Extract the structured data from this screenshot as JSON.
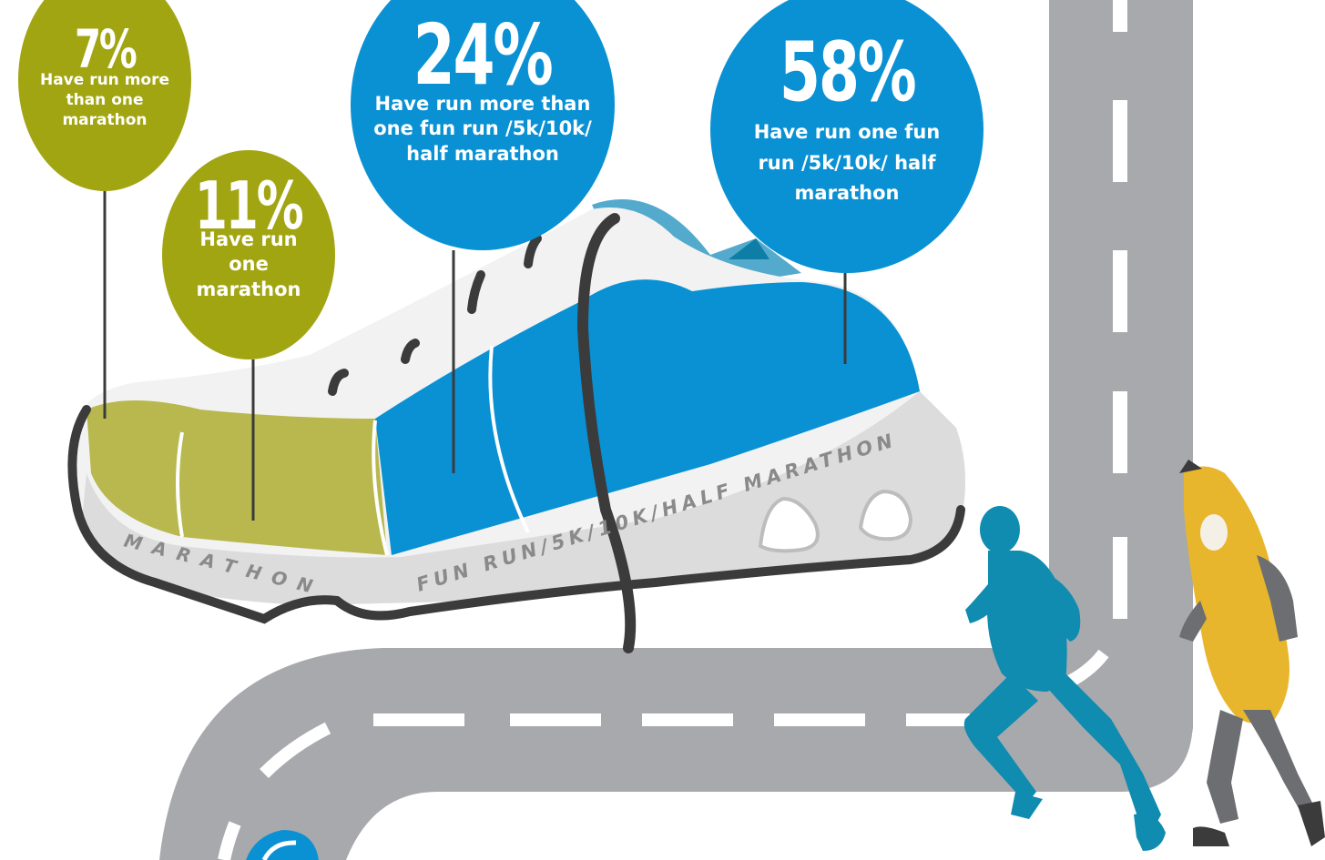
{
  "stats": [
    {
      "id": "more-than-one-marathon",
      "percent": "7%",
      "text": "Have run more than one marathon",
      "color": "#a2a512"
    },
    {
      "id": "one-marathon",
      "percent": "11%",
      "text": "Have run one marathon",
      "color": "#a2a512"
    },
    {
      "id": "more-than-one-fun-run",
      "percent": "24%",
      "text": "Have run more than one fun run /5k/10k/ half marathon",
      "color": "#0a91d4"
    },
    {
      "id": "one-fun-run",
      "percent": "58%",
      "text": "Have run one fun run /5k/10k/ half marathon",
      "color": "#0a91d4"
    }
  ],
  "shoe": {
    "label_marathon": "MARATHON",
    "label_funrun": "FUN RUN/5K/10K/HALF MARATHON"
  },
  "colors": {
    "olive": "#a2a512",
    "olive_light": "#b8b84f",
    "blue": "#0a91d4",
    "road": "#a7a9ac",
    "runner": "#0f8cb0",
    "banana": "#e8b62d"
  }
}
